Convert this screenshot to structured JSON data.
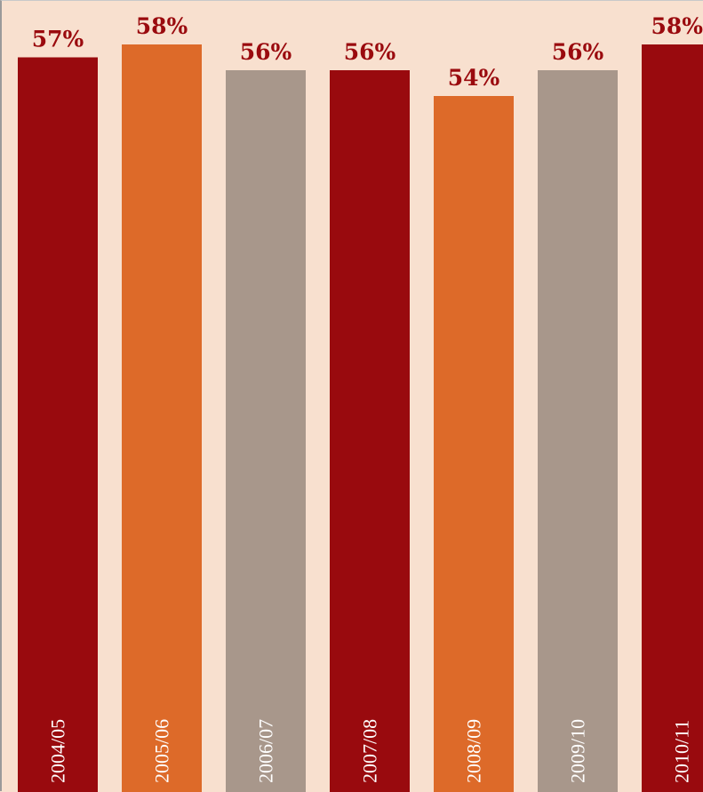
{
  "chart_data": {
    "type": "bar",
    "categories": [
      "2004/05",
      "2005/06",
      "2006/07",
      "2007/08",
      "2008/09",
      "2009/10",
      "2010/11"
    ],
    "values": [
      57,
      58,
      56,
      56,
      54,
      56,
      58
    ],
    "value_labels": [
      "57%",
      "58%",
      "56%",
      "56%",
      "54%",
      "56%",
      "58%"
    ],
    "bar_colors": [
      "#990a0e",
      "#dd6a29",
      "#a8978b",
      "#990a0e",
      "#dd6a29",
      "#a8978b",
      "#990a0e"
    ],
    "title": "",
    "xlabel": "",
    "ylabel": "",
    "grid": false,
    "legend": "none"
  },
  "colors": {
    "background": "#f8e0cf",
    "label_text": "#9a0a0e",
    "category_text": "#ffffff"
  }
}
